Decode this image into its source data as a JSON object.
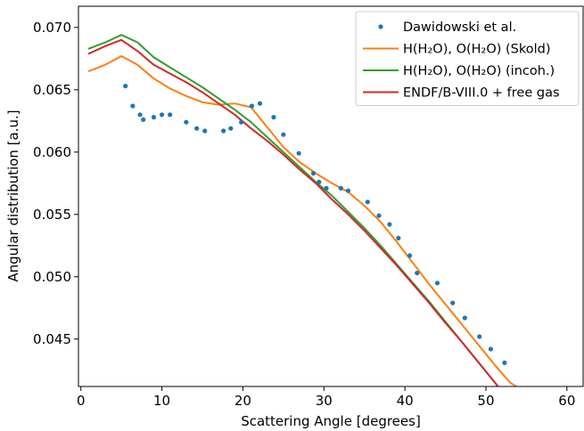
{
  "chart_data": {
    "type": "line",
    "xlabel": "Scattering Angle [degrees]",
    "ylabel": "Angular distribution [a.u.]",
    "xlim": [
      -0.3,
      62
    ],
    "ylim": [
      0.0412,
      0.0717
    ],
    "xticks": [
      {
        "value": 0,
        "label": "0"
      },
      {
        "value": 10,
        "label": "10"
      },
      {
        "value": 20,
        "label": "20"
      },
      {
        "value": 30,
        "label": "30"
      },
      {
        "value": 40,
        "label": "40"
      },
      {
        "value": 50,
        "label": "50"
      },
      {
        "value": 60,
        "label": "60"
      }
    ],
    "yticks": [
      {
        "value": 0.045,
        "label": "0.045"
      },
      {
        "value": 0.05,
        "label": "0.050"
      },
      {
        "value": 0.055,
        "label": "0.055"
      },
      {
        "value": 0.06,
        "label": "0.060"
      },
      {
        "value": 0.065,
        "label": "0.065"
      },
      {
        "value": 0.07,
        "label": "0.070"
      }
    ],
    "grid": false,
    "legend_position": "top-right",
    "series": [
      {
        "name": "Dawidowski et al.",
        "kind": "scatter",
        "color": "#1f77b4",
        "x": [
          5.5,
          6.4,
          7.3,
          7.7,
          9.0,
          10.0,
          11.0,
          13.0,
          14.3,
          15.3,
          17.6,
          18.5,
          19.8,
          21.1,
          22.1,
          23.8,
          25.0,
          26.9,
          28.7,
          29.4,
          30.3,
          32.1,
          33.0,
          35.4,
          36.8,
          38.1,
          39.2,
          40.6,
          41.5,
          44.0,
          45.9,
          47.4,
          49.2,
          50.6,
          52.3
        ],
        "y": [
          0.0653,
          0.0637,
          0.063,
          0.0626,
          0.0628,
          0.063,
          0.063,
          0.0624,
          0.0619,
          0.0617,
          0.0617,
          0.0619,
          0.0624,
          0.0637,
          0.0639,
          0.0628,
          0.0614,
          0.0599,
          0.0583,
          0.0576,
          0.0571,
          0.0571,
          0.0569,
          0.056,
          0.0549,
          0.0542,
          0.0531,
          0.0517,
          0.0503,
          0.0495,
          0.0479,
          0.0467,
          0.0452,
          0.0442,
          0.0431
        ]
      },
      {
        "name": "H(H₂O), O(H₂O) (Skold)",
        "kind": "line",
        "color": "#ff7f0e",
        "x": [
          1,
          3,
          5,
          7,
          9,
          11,
          13,
          15,
          17,
          19,
          21,
          23,
          25,
          27,
          29,
          31,
          33,
          35,
          37,
          39,
          41,
          43,
          45,
          47,
          49,
          51,
          53,
          55
        ],
        "y": [
          0.0665,
          0.067,
          0.0677,
          0.067,
          0.0659,
          0.0651,
          0.0645,
          0.064,
          0.0638,
          0.0639,
          0.0636,
          0.062,
          0.0604,
          0.0592,
          0.0583,
          0.0575,
          0.0568,
          0.0557,
          0.0544,
          0.0528,
          0.0511,
          0.0494,
          0.0478,
          0.0462,
          0.0446,
          0.043,
          0.0415,
          0.0407
        ]
      },
      {
        "name": "H(H₂O), O(H₂O) (incoh.)",
        "kind": "line",
        "color": "#2ca02c",
        "x": [
          1,
          3,
          5,
          7,
          9,
          11,
          13,
          15,
          17,
          19,
          21,
          23,
          25,
          27,
          29,
          31,
          33,
          35,
          37,
          39,
          41,
          43,
          45,
          47,
          49,
          51,
          53,
          55
        ],
        "y": [
          0.0683,
          0.0688,
          0.0694,
          0.0688,
          0.0676,
          0.0668,
          0.066,
          0.0652,
          0.0643,
          0.0634,
          0.0624,
          0.0612,
          0.06,
          0.0588,
          0.0576,
          0.0565,
          0.0552,
          0.0539,
          0.0525,
          0.051,
          0.0495,
          0.048,
          0.0464,
          0.0448,
          0.0432,
          0.0416,
          0.04,
          0.0386
        ]
      },
      {
        "name": "ENDF/B-VIII.0 + free gas",
        "kind": "line",
        "color": "#d62728",
        "x": [
          1,
          3,
          5,
          7,
          9,
          11,
          13,
          15,
          17,
          19,
          21,
          23,
          25,
          27,
          29,
          31,
          33,
          35,
          37,
          39,
          41,
          43,
          45,
          47,
          49,
          51,
          53,
          55
        ],
        "y": [
          0.0679,
          0.0685,
          0.069,
          0.0681,
          0.067,
          0.0663,
          0.0656,
          0.0648,
          0.0639,
          0.063,
          0.0619,
          0.0609,
          0.0598,
          0.0586,
          0.0575,
          0.0562,
          0.055,
          0.0537,
          0.0523,
          0.0509,
          0.0494,
          0.0479,
          0.0463,
          0.0448,
          0.0432,
          0.0416,
          0.04,
          0.0386
        ]
      }
    ]
  }
}
